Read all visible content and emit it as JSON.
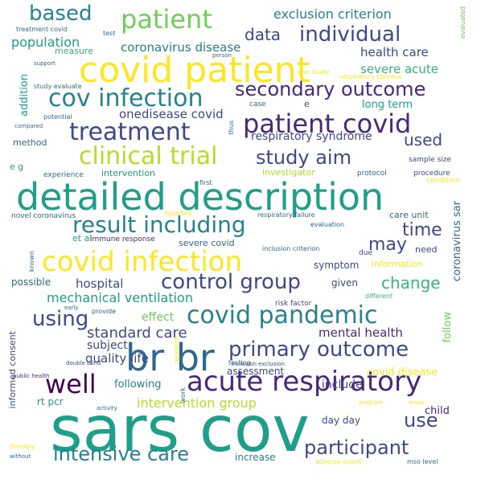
{
  "palette": {
    "yellow": "#fde725",
    "lime": "#b5de2b",
    "green": "#6ece58",
    "teal_green": "#35b779",
    "teal": "#1f9e89",
    "blue_teal": "#26828e",
    "steel": "#31688e",
    "indigo": "#3e4989",
    "violet": "#482878",
    "deep": "#440154"
  },
  "words": [
    {
      "id": "sars-cov",
      "text": "sars cov",
      "color": "teal",
      "size": 78
    },
    {
      "id": "detailed-description",
      "text": "detailed description",
      "color": "teal",
      "size": 46
    },
    {
      "id": "covid-patient",
      "text": "covid patient",
      "color": "yellow",
      "size": 44
    },
    {
      "id": "br-br",
      "text": "br br",
      "color": "steel",
      "size": 46
    },
    {
      "id": "covid-infection-main",
      "text": "covid infection",
      "color": "yellow",
      "size": 34
    },
    {
      "id": "acute-respiratory",
      "text": "acute respiratory",
      "color": "violet",
      "size": 34
    },
    {
      "id": "patient-covid",
      "text": "patient covid",
      "color": "violet",
      "size": 32
    },
    {
      "id": "covid-pandemic",
      "text": "covid pandemic",
      "color": "blue_teal",
      "size": 30
    },
    {
      "id": "patient",
      "text": "patient",
      "color": "green",
      "size": 32
    },
    {
      "id": "treatment",
      "text": "treatment",
      "color": "indigo",
      "size": 30
    },
    {
      "id": "cov-infection",
      "text": "cov infection",
      "color": "blue_teal",
      "size": 30
    },
    {
      "id": "clinical-trial",
      "text": "clinical trial",
      "color": "lime",
      "size": 30
    },
    {
      "id": "result-including",
      "text": "result including",
      "color": "blue_teal",
      "size": 28
    },
    {
      "id": "control-group",
      "text": "control group",
      "color": "indigo",
      "size": 26
    },
    {
      "id": "primary-outcome",
      "text": "primary outcome",
      "color": "indigo",
      "size": 26
    },
    {
      "id": "well",
      "text": "well",
      "color": "deep",
      "size": 32
    },
    {
      "id": "secondary-outcome",
      "text": "secondary outcome",
      "color": "violet",
      "size": 24
    },
    {
      "id": "individual",
      "text": "individual",
      "color": "indigo",
      "size": 26
    },
    {
      "id": "study-aim",
      "text": "study aim",
      "color": "indigo",
      "size": 24
    },
    {
      "id": "based",
      "text": "based",
      "color": "blue_teal",
      "size": 26
    },
    {
      "id": "using",
      "text": "using",
      "color": "indigo",
      "size": 26
    },
    {
      "id": "participant",
      "text": "participant",
      "color": "indigo",
      "size": 24
    },
    {
      "id": "intensive-care",
      "text": "intensive care",
      "color": "blue_teal",
      "size": 24
    },
    {
      "id": "use",
      "text": "use",
      "color": "indigo",
      "size": 24
    },
    {
      "id": "time",
      "text": "time",
      "color": "indigo",
      "size": 22
    },
    {
      "id": "may",
      "text": "may",
      "color": "indigo",
      "size": 22
    },
    {
      "id": "change",
      "text": "change",
      "color": "teal_green",
      "size": 20
    },
    {
      "id": "data",
      "text": "data",
      "color": "indigo",
      "size": 20
    },
    {
      "id": "used",
      "text": "used",
      "color": "indigo",
      "size": 20
    },
    {
      "id": "standard-care",
      "text": "standard care",
      "color": "indigo",
      "size": 18
    },
    {
      "id": "exclusion-criterion",
      "text": "exclusion criterion",
      "color": "blue_teal",
      "size": 16
    },
    {
      "id": "population",
      "text": "population",
      "color": "teal",
      "size": 16
    },
    {
      "id": "coronavirus-disease",
      "text": "coronavirus disease",
      "color": "blue_teal",
      "size": 15
    },
    {
      "id": "health-care",
      "text": "health care",
      "color": "indigo",
      "size": 15
    },
    {
      "id": "severe-acute",
      "text": "severe acute",
      "color": "teal_green",
      "size": 15
    },
    {
      "id": "onedisease-covid",
      "text": "onedisease covid",
      "color": "indigo",
      "size": 15
    },
    {
      "id": "respiratory-syndrome",
      "text": "respiratory syndrome",
      "color": "indigo",
      "size": 14
    },
    {
      "id": "long-term",
      "text": "long term",
      "color": "teal",
      "size": 13
    },
    {
      "id": "mechanical-ventilation",
      "text": "mechanical ventilation",
      "color": "teal",
      "size": 16
    },
    {
      "id": "hospital",
      "text": "hospital",
      "color": "indigo",
      "size": 15
    },
    {
      "id": "mental-health",
      "text": "mental health",
      "color": "violet",
      "size": 15
    },
    {
      "id": "quality-life",
      "text": "quality life",
      "color": "indigo",
      "size": 15
    },
    {
      "id": "intervention-group",
      "text": "intervention group",
      "color": "lime",
      "size": 16
    },
    {
      "id": "include",
      "text": "include",
      "color": "indigo",
      "size": 14
    },
    {
      "id": "covid-disease",
      "text": "covid disease",
      "color": "yellow",
      "size": 13
    },
    {
      "id": "subject",
      "text": "subject",
      "color": "indigo",
      "size": 14
    },
    {
      "id": "effect",
      "text": "effect",
      "color": "green",
      "size": 14
    },
    {
      "id": "following",
      "text": "following",
      "color": "blue_teal",
      "size": 13
    },
    {
      "id": "assessment",
      "text": "assessment",
      "color": "indigo",
      "size": 12
    },
    {
      "id": "rt-pcr",
      "text": "rt pcr",
      "color": "teal",
      "size": 12
    },
    {
      "id": "day-day",
      "text": "day day",
      "color": "indigo",
      "size": 12
    },
    {
      "id": "child",
      "text": "child",
      "color": "violet",
      "size": 13
    },
    {
      "id": "increase",
      "text": "increase",
      "color": "blue_teal",
      "size": 12
    },
    {
      "id": "symptom",
      "text": "symptom",
      "color": "indigo",
      "size": 12
    },
    {
      "id": "possible",
      "text": "possible",
      "color": "steel",
      "size": 12
    },
    {
      "id": "given",
      "text": "given",
      "color": "indigo",
      "size": 12
    },
    {
      "id": "information",
      "text": "information",
      "color": "yellow",
      "size": 11
    },
    {
      "id": "need",
      "text": "need",
      "color": "indigo",
      "size": 11
    },
    {
      "id": "severe-covid",
      "text": "severe covid",
      "color": "steel",
      "size": 11
    },
    {
      "id": "care-unit",
      "text": "care unit",
      "color": "steel",
      "size": 11
    },
    {
      "id": "method",
      "text": "method",
      "color": "steel",
      "size": 11
    },
    {
      "id": "e-g",
      "text": "e g",
      "color": "teal",
      "size": 11
    },
    {
      "id": "intervention",
      "text": "intervention",
      "color": "teal",
      "size": 11
    },
    {
      "id": "investigator",
      "text": "investigator",
      "color": "lime",
      "size": 11
    },
    {
      "id": "measure",
      "text": "measure",
      "color": "teal_green",
      "size": 11
    },
    {
      "id": "et-al",
      "text": "et al",
      "color": "teal",
      "size": 11
    },
    {
      "id": "e",
      "text": "e",
      "color": "indigo",
      "size": 11
    },
    {
      "id": "case",
      "text": "case",
      "color": "steel",
      "size": 9
    },
    {
      "id": "protocol",
      "text": "protocol",
      "color": "steel",
      "size": 9
    },
    {
      "id": "procedure",
      "text": "procedure",
      "color": "indigo",
      "size": 9
    },
    {
      "id": "condition",
      "text": "condition",
      "color": "yellow",
      "size": 9
    },
    {
      "id": "sample-size",
      "text": "sample size",
      "color": "indigo",
      "size": 9
    },
    {
      "id": "experience",
      "text": "experience",
      "color": "steel",
      "size": 9
    },
    {
      "id": "first",
      "text": "first",
      "color": "steel",
      "size": 8
    },
    {
      "id": "novel-coronavirus",
      "text": "novel coronavirus",
      "color": "steel",
      "size": 9
    },
    {
      "id": "reported",
      "text": "reported",
      "color": "yellow",
      "size": 8
    },
    {
      "id": "respiratory-failure",
      "text": "respiratory failure",
      "color": "steel",
      "size": 8
    },
    {
      "id": "evaluation",
      "text": "evaluation",
      "color": "steel",
      "size": 8
    },
    {
      "id": "immune-response",
      "text": "immune response",
      "color": "violet",
      "size": 9
    },
    {
      "id": "inclusion-criterion",
      "text": "inclusion criterion",
      "color": "steel",
      "size": 8
    },
    {
      "id": "due",
      "text": "due",
      "color": "indigo",
      "size": 9
    },
    {
      "id": "risk-factor",
      "text": "risk factor",
      "color": "indigo",
      "size": 9
    },
    {
      "id": "different",
      "text": "different",
      "color": "teal_green",
      "size": 8
    },
    {
      "id": "provide",
      "text": "provide",
      "color": "steel",
      "size": 8
    },
    {
      "id": "early",
      "text": "early",
      "color": "steel",
      "size": 7
    },
    {
      "id": "testing",
      "text": "testing",
      "color": "steel",
      "size": 8
    },
    {
      "id": "double-blind",
      "text": "double blind",
      "color": "indigo",
      "size": 7
    },
    {
      "id": "inclusion-exclusion",
      "text": "inclusion exclusion",
      "color": "indigo",
      "size": 7
    },
    {
      "id": "public-health",
      "text": "public health",
      "color": "violet",
      "size": 7
    },
    {
      "id": "activity",
      "text": "activity",
      "color": "steel",
      "size": 7
    },
    {
      "id": "program",
      "text": "program",
      "color": "yellow",
      "size": 7
    },
    {
      "id": "many",
      "text": "many",
      "color": "yellow",
      "size": 7
    },
    {
      "id": "mso-level",
      "text": "mso level",
      "color": "steel",
      "size": 8
    },
    {
      "id": "adverse-event",
      "text": "adverse event",
      "color": "yellow",
      "size": 8
    },
    {
      "id": "therapy",
      "text": "therapy",
      "color": "yellow",
      "size": 8
    },
    {
      "id": "without",
      "text": "without",
      "color": "steel",
      "size": 7
    },
    {
      "id": "treatment-covid",
      "text": "treatment covid",
      "color": "steel",
      "size": 8
    },
    {
      "id": "test",
      "text": "test",
      "color": "steel",
      "size": 8
    },
    {
      "id": "support",
      "text": "support",
      "color": "steel",
      "size": 7
    },
    {
      "id": "person",
      "text": "person",
      "color": "steel",
      "size": 7
    },
    {
      "id": "aim-study",
      "text": "aim study",
      "color": "yellow",
      "size": 8
    },
    {
      "id": "respiratory-distress",
      "text": "respiratory distress",
      "color": "yellow",
      "size": 8
    },
    {
      "id": "study-evaluate",
      "text": "study evaluate",
      "color": "steel",
      "size": 8
    },
    {
      "id": "compared",
      "text": "compared",
      "color": "steel",
      "size": 7
    },
    {
      "id": "potential",
      "text": "potential",
      "color": "steel",
      "size": 8
    },
    {
      "id": "addition",
      "text": "addition",
      "color": "teal",
      "size": 13,
      "vertical": true
    },
    {
      "id": "coronavirus-sar",
      "text": "coronavirus sar",
      "color": "steel",
      "size": 13,
      "vertical": true
    },
    {
      "id": "follow",
      "text": "follow",
      "color": "green",
      "size": 13,
      "vertical": true
    },
    {
      "id": "informed-consent",
      "text": "informed consent",
      "color": "indigo",
      "size": 11,
      "vertical": true
    },
    {
      "id": "thus",
      "text": "thus",
      "color": "steel",
      "size": 8,
      "vertical": true
    },
    {
      "id": "evaluated",
      "text": "evaluated",
      "color": "green",
      "size": 8,
      "vertical": true
    },
    {
      "id": "known",
      "text": "known",
      "color": "steel",
      "size": 8,
      "vertical": true
    },
    {
      "id": "research",
      "text": "research",
      "color": "yellow",
      "size": 8,
      "vertical": true
    },
    {
      "id": "work",
      "text": "work",
      "color": "steel",
      "size": 8,
      "vertical": true
    }
  ]
}
